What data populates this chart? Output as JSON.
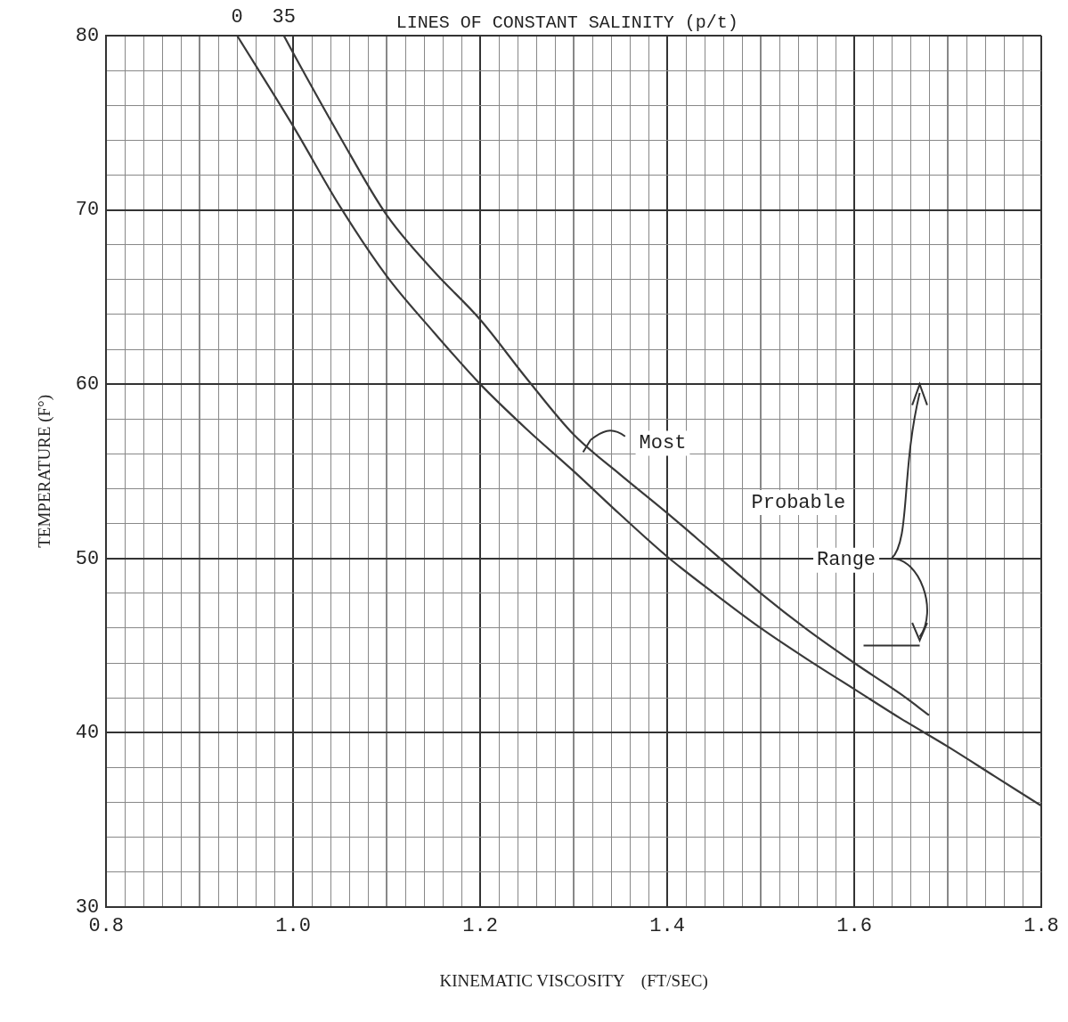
{
  "chart_data": {
    "type": "line",
    "title": "LINES OF CONSTANT SALINITY (p/t)",
    "xlabel": "KINEMATIC VISCOSITY    (FT/SEC)",
    "ylabel": "TEMPERATURE (F°)",
    "series": [
      {
        "name": "0",
        "color": "#3a3a3a",
        "x": [
          0.94,
          1.0,
          1.05,
          1.1,
          1.15,
          1.2,
          1.25,
          1.3,
          1.35,
          1.4,
          1.45,
          1.5,
          1.55,
          1.6,
          1.65,
          1.7,
          1.75,
          1.8
        ],
        "values": [
          80,
          74.8,
          70.2,
          66.2,
          63,
          60,
          57.4,
          55,
          52.5,
          50.1,
          48,
          46,
          44.2,
          42.5,
          40.8,
          39.2,
          37.5,
          35.8
        ]
      },
      {
        "name": "35",
        "color": "#3a3a3a",
        "x": [
          0.99,
          1.0,
          1.05,
          1.1,
          1.15,
          1.2,
          1.25,
          1.3,
          1.35,
          1.4,
          1.45,
          1.5,
          1.55,
          1.6,
          1.65,
          1.68
        ],
        "values": [
          80,
          79,
          74.2,
          69.7,
          66.5,
          63.7,
          60.3,
          57.1,
          54.8,
          52.6,
          50.3,
          48,
          45.9,
          44,
          42.2,
          41
        ]
      }
    ],
    "annotations": [
      "Most",
      "Probable",
      "Range"
    ],
    "xlim": [
      0.8,
      1.8
    ],
    "ylim": [
      30,
      80
    ],
    "xticks": [
      0.8,
      {
        "value": 0.82,
        "label": null
      },
      {
        "value": 0.84,
        "label": null
      },
      {
        "value": 0.86,
        "label": null
      },
      {
        "value": 0.88,
        "label": null
      },
      {
        "value": 0.9,
        "label": null
      },
      {
        "value": 0.92,
        "label": null
      },
      {
        "value": 0.94,
        "label": null
      },
      {
        "value": 0.96,
        "label": null
      },
      {
        "value": 0.98,
        "label": null
      },
      {
        "value": 1.0,
        "label": "1.0"
      },
      {
        "value": 1.02,
        "label": null
      },
      {
        "value": 1.04,
        "label": null
      },
      {
        "value": 1.06,
        "label": null
      },
      {
        "value": 1.08,
        "label": null
      },
      {
        "value": 1.1,
        "label": null
      },
      {
        "value": 1.12,
        "label": null
      },
      {
        "value": 1.14,
        "label": null
      },
      {
        "value": 1.16,
        "label": null
      },
      {
        "value": 1.18,
        "label": null
      },
      1.2,
      {
        "value": 1.22,
        "label": null
      },
      {
        "value": 1.24,
        "label": null
      },
      {
        "value": 1.26,
        "label": null
      },
      {
        "value": 1.28,
        "label": null
      },
      {
        "value": 1.3,
        "label": null
      },
      {
        "value": 1.32,
        "label": null
      },
      {
        "value": 1.34,
        "label": null
      },
      {
        "value": 1.36,
        "label": null
      },
      {
        "value": 1.38,
        "label": null
      },
      1.4,
      {
        "value": 1.42,
        "label": null
      },
      {
        "value": 1.44,
        "label": null
      },
      {
        "value": 1.46,
        "label": null
      },
      {
        "value": 1.48,
        "label": null
      },
      {
        "value": 1.5,
        "label": null
      },
      {
        "value": 1.52,
        "label": null
      },
      {
        "value": 1.54,
        "label": null
      },
      {
        "value": 1.56,
        "label": null
      },
      {
        "value": 1.58,
        "label": null
      },
      1.6,
      {
        "value": 1.62,
        "label": null
      },
      {
        "value": 1.64,
        "label": null
      },
      {
        "value": 1.66,
        "label": null
      },
      {
        "value": 1.68,
        "label": null
      },
      {
        "value": 1.7,
        "label": null
      },
      {
        "value": 1.72,
        "label": null
      },
      {
        "value": 1.74,
        "label": null
      },
      {
        "value": 1.76,
        "label": null
      },
      {
        "value": 1.78,
        "label": null
      },
      1.8
    ],
    "yticks": [
      30,
      {
        "value": 32,
        "label": null
      },
      {
        "value": 34,
        "label": null
      },
      {
        "value": 36,
        "label": null
      },
      {
        "value": 38,
        "label": null
      },
      40,
      {
        "value": 42,
        "label": null
      },
      {
        "value": 44,
        "label": null
      },
      {
        "value": 46,
        "label": null
      },
      {
        "value": 48,
        "label": null
      },
      50,
      {
        "value": 52,
        "label": null
      },
      {
        "value": 54,
        "label": null
      },
      {
        "value": 56,
        "label": null
      },
      {
        "value": 58,
        "label": null
      },
      60,
      {
        "value": 62,
        "label": null
      },
      {
        "value": 64,
        "label": null
      },
      {
        "value": 66,
        "label": null
      },
      {
        "value": 68,
        "label": null
      },
      70,
      {
        "value": 72,
        "label": null
      },
      {
        "value": 74,
        "label": null
      },
      {
        "value": 76,
        "label": null
      },
      {
        "value": 78,
        "label": null
      },
      80
    ],
    "grid": true,
    "legend": false,
    "marker": "none",
    "line_style": "solid"
  }
}
